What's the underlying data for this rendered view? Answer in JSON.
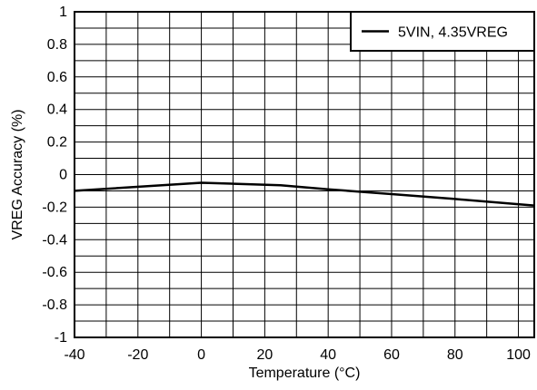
{
  "chart_data": {
    "type": "line",
    "xlabel": "Temperature (°C)",
    "ylabel": "VREG Accuracy (%)",
    "xlim": [
      -40,
      105
    ],
    "ylim": [
      -1,
      1
    ],
    "x_ticks": [
      "-40",
      "-20",
      "0",
      "20",
      "40",
      "60",
      "80",
      "100"
    ],
    "y_ticks": [
      "1",
      "0.8",
      "0.6",
      "0.4",
      "0.2",
      "0",
      "-0.2",
      "-0.4",
      "-0.6",
      "-0.8",
      "-1"
    ],
    "grid": true,
    "legend_position": "top-right",
    "series": [
      {
        "name": "5VIN, 4.35VREG",
        "color": "#000000",
        "x": [
          -40,
          0,
          25,
          40,
          60,
          80,
          105
        ],
        "y": [
          -0.1,
          -0.05,
          -0.065,
          -0.09,
          -0.12,
          -0.15,
          -0.19
        ]
      }
    ]
  }
}
